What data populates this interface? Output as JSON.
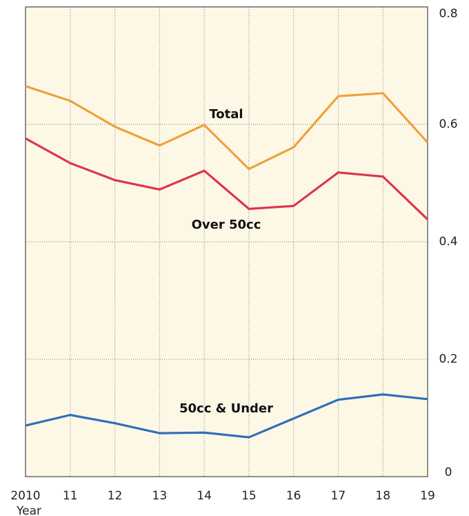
{
  "chart_data": {
    "type": "line",
    "categories": [
      "2010",
      "11",
      "12",
      "13",
      "14",
      "15",
      "16",
      "17",
      "18",
      "19"
    ],
    "x_label": "Year",
    "series": [
      {
        "name": "Total",
        "color": "#f0a03c",
        "values": [
          0.665,
          0.64,
          0.596,
          0.564,
          0.599,
          0.524,
          0.561,
          0.648,
          0.653,
          0.569
        ]
      },
      {
        "name": "Over 50cc",
        "color": "#e0344a",
        "values": [
          0.576,
          0.534,
          0.505,
          0.489,
          0.521,
          0.456,
          0.461,
          0.518,
          0.511,
          0.438
        ]
      },
      {
        "name": "50cc & Under",
        "color": "#2f6fba",
        "values": [
          0.087,
          0.105,
          0.091,
          0.074,
          0.075,
          0.067,
          0.099,
          0.131,
          0.14,
          0.132
        ]
      }
    ],
    "ylim": [
      0,
      0.8
    ],
    "yticks": [
      0,
      0.2,
      0.4,
      0.6,
      0.8
    ],
    "grid": true
  }
}
